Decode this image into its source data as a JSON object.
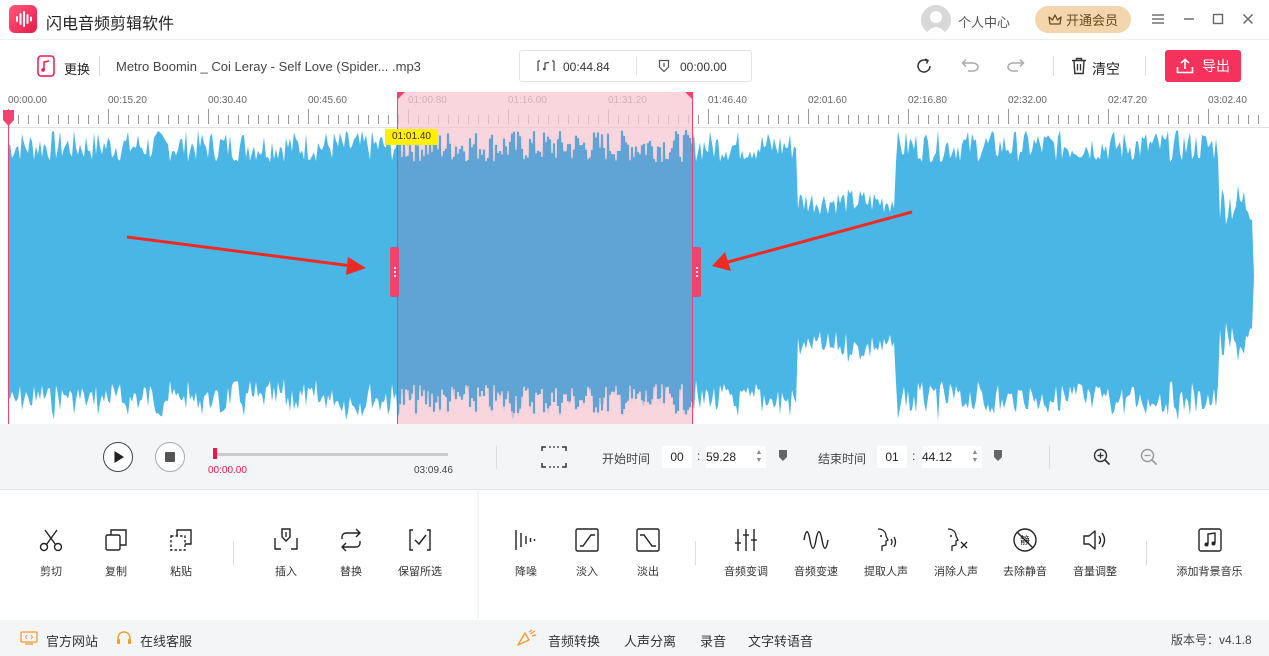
{
  "app": {
    "title": "闪电音频剪辑软件",
    "user_center": "个人中心",
    "vip_label": "开通会员"
  },
  "toolbar": {
    "replace_label": "更换",
    "file_name": "Metro Boomin _ Coi Leray - Self Love (Spider... .mp3",
    "duration": "00:44.84",
    "position": "00:00.00",
    "clear_label": "清空",
    "export_label": "导出"
  },
  "timeline": {
    "ticks": [
      "00:00.00",
      "00:15.20",
      "00:30.40",
      "00:45.60",
      "01:00.80",
      "01:16.00",
      "01:31.20",
      "01:46.40",
      "02:01.60",
      "02:16.80",
      "02:32.00",
      "02:47.20",
      "03:02.40"
    ],
    "tooltip": "01:01.40",
    "selection_start": "00:59.28",
    "selection_end": "01:44.12"
  },
  "playback": {
    "current_time": "00:00.00",
    "total_time": "03:09.46",
    "start_label": "开始时间",
    "start_min": "00",
    "start_sec": "59.28",
    "end_label": "结束时间",
    "end_min": "01",
    "end_sec": "44.12"
  },
  "tools": {
    "cut": "剪切",
    "copy": "复制",
    "paste": "粘贴",
    "insert": "插入",
    "replace": "替换",
    "keep_selected": "保留所选",
    "denoise": "降噪",
    "fade_in": "淡入",
    "fade_out": "淡出",
    "pitch": "音频变调",
    "speed": "音频变速",
    "extract_vocal": "提取人声",
    "remove_vocal": "消除人声",
    "remove_silence": "去除静音",
    "volume": "音量调整",
    "add_bgm": "添加背景音乐"
  },
  "status": {
    "website": "官方网站",
    "support": "在线客服",
    "convert": "音频转换",
    "separate": "人声分离",
    "record": "录音",
    "tts": "文字转语音",
    "version": "版本号：v4.1.8"
  },
  "colors": {
    "accent": "#f5325b",
    "wave": "#4ab6e6",
    "selection": "#f7c8d2"
  }
}
